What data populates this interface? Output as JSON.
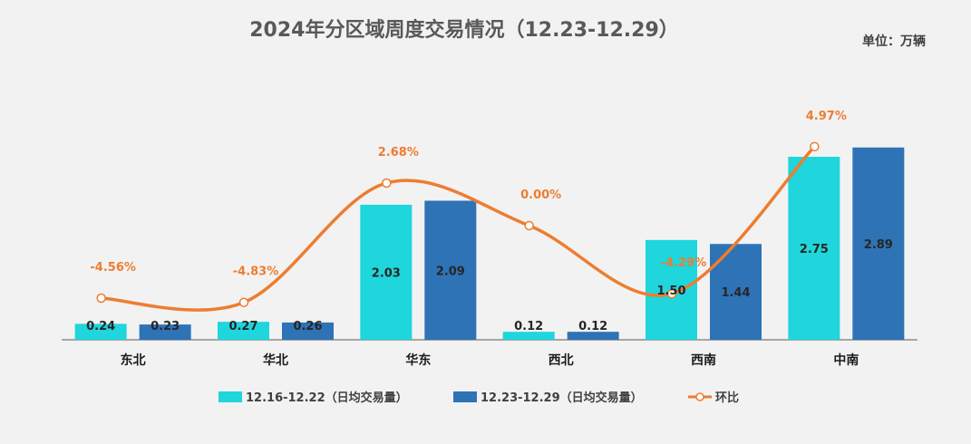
{
  "chart_data": {
    "type": "bar",
    "title": "2024年分区域周度交易情况（12.23-12.29）",
    "unit_label": "单位：万辆",
    "categories": [
      "东北",
      "华北",
      "华东",
      "西北",
      "西南",
      "中南"
    ],
    "series": [
      {
        "name": "12.16-12.22（日均交易量）",
        "type": "bar",
        "color": "#1ed6dc",
        "values": [
          0.24,
          0.27,
          2.03,
          0.12,
          1.5,
          2.75
        ],
        "labels": [
          "0.24",
          "0.27",
          "2.03",
          "0.12",
          "1.50",
          "2.75"
        ]
      },
      {
        "name": "12.23-12.29（日均交易量）",
        "type": "bar",
        "color": "#2e73b6",
        "values": [
          0.23,
          0.26,
          2.09,
          0.12,
          1.44,
          2.89
        ],
        "labels": [
          "0.23",
          "0.26",
          "2.09",
          "0.12",
          "1.44",
          "2.89"
        ]
      },
      {
        "name": "环比",
        "type": "line",
        "color": "#ed7d31",
        "values": [
          -4.56,
          -4.83,
          2.68,
          0.0,
          -4.29,
          4.97
        ],
        "labels": [
          "-4.56%",
          "-4.83%",
          "2.68%",
          "0.00%",
          "-4.29%",
          "4.97%"
        ]
      }
    ],
    "bar_ylim": [
      0,
      3.2
    ],
    "line_ylim": [
      -6.5,
      6.5
    ],
    "grid": false,
    "legend_position": "bottom"
  }
}
